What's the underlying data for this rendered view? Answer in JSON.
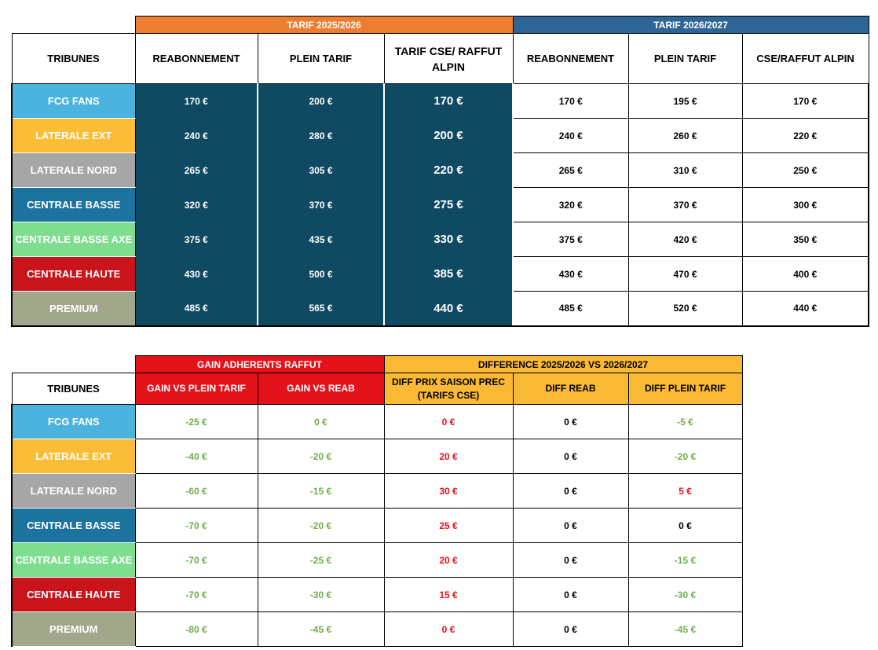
{
  "table1": {
    "group_headers": {
      "tarif_2025": "TARIF 2025/2026",
      "tarif_2026": "TARIF 2026/2027"
    },
    "column_headers": [
      "TRIBUNES",
      "REABONNEMENT",
      "PLEIN TARIF",
      "TARIF CSE/ RAFFUT ALPIN",
      "REABONNEMENT",
      "PLEIN TARIF",
      "CSE/RAFFUT ALPIN"
    ],
    "rows": [
      {
        "tribune": "FCG FANS",
        "color": "#4bb4de",
        "reab_25": "170 €",
        "plein_25": "200 €",
        "cse_25": "170 €",
        "reab_26": "170 €",
        "plein_26": "195 €",
        "cse_26": "170 €"
      },
      {
        "tribune": "LATERALE EXT",
        "color": "#fbbd37",
        "reab_25": "240 €",
        "plein_25": "280 €",
        "cse_25": "200 €",
        "reab_26": "240 €",
        "plein_26": "260 €",
        "cse_26": "220 €"
      },
      {
        "tribune": "LATERALE NORD",
        "color": "#a6a6a6",
        "reab_25": "265 €",
        "plein_25": "305 €",
        "cse_25": "220 €",
        "reab_26": "265 €",
        "plein_26": "310 €",
        "cse_26": "250 €"
      },
      {
        "tribune": "CENTRALE BASSE",
        "color": "#1b739e",
        "reab_25": "320 €",
        "plein_25": "370 €",
        "cse_25": "275 €",
        "reab_26": "320 €",
        "plein_26": "370 €",
        "cse_26": "300 €"
      },
      {
        "tribune": "CENTRALE BASSE AXE",
        "color": "#7fdd8f",
        "reab_25": "375 €",
        "plein_25": "435 €",
        "cse_25": "330 €",
        "reab_26": "375 €",
        "plein_26": "420 €",
        "cse_26": "350 €"
      },
      {
        "tribune": "CENTRALE HAUTE",
        "color": "#c9141c",
        "reab_25": "430 €",
        "plein_25": "500 €",
        "cse_25": "385 €",
        "reab_26": "430 €",
        "plein_26": "470 €",
        "cse_26": "400 €"
      },
      {
        "tribune": "PREMIUM",
        "color": "#a1a78a",
        "reab_25": "485 €",
        "plein_25": "565 €",
        "cse_25": "440 €",
        "reab_26": "485 €",
        "plein_26": "520 €",
        "cse_26": "440 €"
      }
    ]
  },
  "table2": {
    "group_headers": {
      "gain": "GAIN ADHERENTS RAFFUT",
      "diff": "DIFFERENCE 2025/2026 VS 2026/2027"
    },
    "column_headers": [
      "TRIBUNES",
      "GAIN  VS PLEIN  TARIF",
      "GAIN VS REAB",
      "DIFF PRIX SAISON PREC (TARIFS CSE)",
      "DIFF REAB",
      "DIFF PLEIN TARIF"
    ],
    "rows": [
      {
        "tribune": "FCG FANS",
        "color": "#4bb4de",
        "gain_plein": "-25 €",
        "gain_reab": "0 €",
        "diff_cse": "0 €",
        "diff_reab": "0 €",
        "diff_plein": "-5 €",
        "diff_plein_color": "#70ad47"
      },
      {
        "tribune": "LATERALE EXT",
        "color": "#fbbd37",
        "gain_plein": "-40 €",
        "gain_reab": "-20 €",
        "diff_cse": "20 €",
        "diff_reab": "0 €",
        "diff_plein": "-20 €",
        "diff_plein_color": "#70ad47"
      },
      {
        "tribune": "LATERALE NORD",
        "color": "#a6a6a6",
        "gain_plein": "-60 €",
        "gain_reab": "-15 €",
        "diff_cse": "30 €",
        "diff_reab": "0 €",
        "diff_plein": "5 €",
        "diff_plein_color": "#e3121b"
      },
      {
        "tribune": "CENTRALE BASSE",
        "color": "#1b739e",
        "gain_plein": "-70 €",
        "gain_reab": "-20 €",
        "diff_cse": "25 €",
        "diff_reab": "0 €",
        "diff_plein": "0 €",
        "diff_plein_color": "#000000"
      },
      {
        "tribune": "CENTRALE BASSE AXE",
        "color": "#7fdd8f",
        "gain_plein": "-70 €",
        "gain_reab": "-25 €",
        "diff_cse": "20 €",
        "diff_reab": "0 €",
        "diff_plein": "-15 €",
        "diff_plein_color": "#70ad47"
      },
      {
        "tribune": "CENTRALE HAUTE",
        "color": "#c9141c",
        "gain_plein": "-70 €",
        "gain_reab": "-30 €",
        "diff_cse": "15 €",
        "diff_reab": "0 €",
        "diff_plein": "-30 €",
        "diff_plein_color": "#70ad47"
      },
      {
        "tribune": "PREMIUM",
        "color": "#a1a78a",
        "gain_plein": "-80 €",
        "gain_reab": "-45 €",
        "diff_cse": "0 €",
        "diff_reab": "0 €",
        "diff_plein": "-45 €",
        "diff_plein_color": "#70ad47"
      }
    ]
  }
}
